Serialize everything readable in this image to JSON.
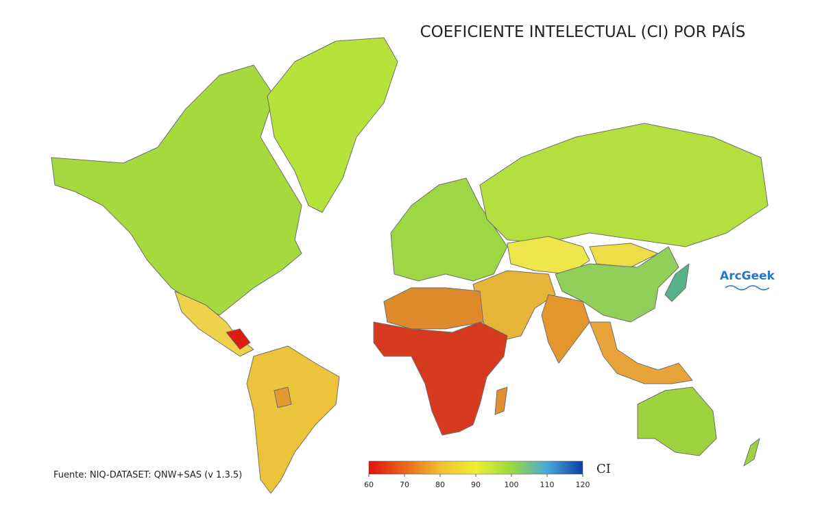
{
  "title": "COEFICIENTE INTELECTUAL (CI) POR PAÍS",
  "source": "Fuente: NIQ-DATASET: QNW+SAS (v 1.3.5)",
  "logo": "ArcGeek",
  "legend": {
    "label": "CI",
    "range": [
      60,
      120
    ],
    "ticks": [
      60,
      70,
      80,
      90,
      100,
      110,
      120
    ],
    "colors": [
      "#e3120b",
      "#e8661a",
      "#f0c033",
      "#eeee33",
      "#9ad940",
      "#49a9d6",
      "#0a3fa8"
    ]
  }
}
